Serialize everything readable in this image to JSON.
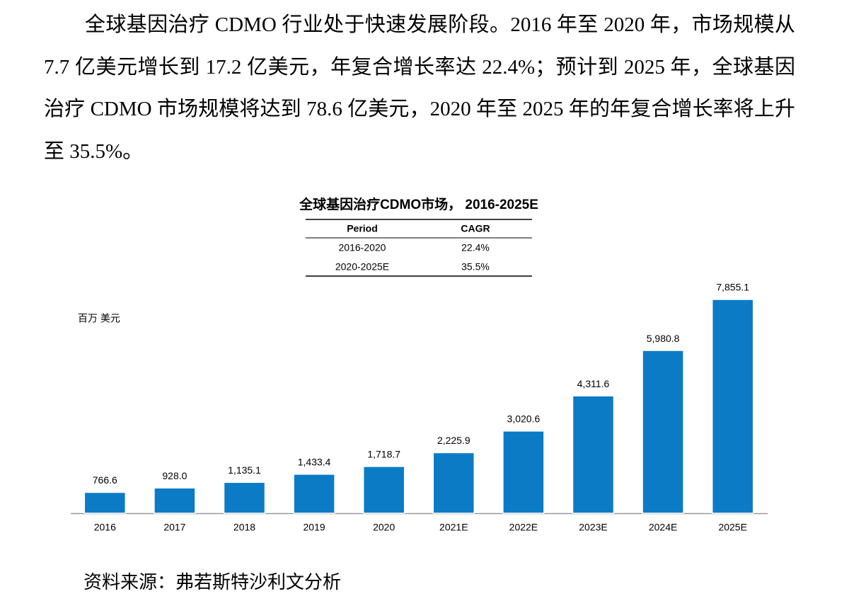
{
  "paragraph": "全球基因治疗 CDMO 行业处于快速发展阶段。2016 年至 2020 年，市场规模从 7.7 亿美元增长到 17.2 亿美元，年复合增长率达 22.4%；预计到 2025 年，全球基因治疗 CDMO 市场规模将达到 78.6 亿美元，2020 年至 2025 年的年复合增长率将上升至 35.5%。",
  "chart_data": {
    "type": "bar",
    "title": "全球基因治疗CDMO市场， 2016-2025E",
    "table": {
      "header": [
        "Period",
        "CAGR"
      ],
      "rows": [
        [
          "2016-2020",
          "22.4%"
        ],
        [
          "2020-2025E",
          "35.5%"
        ]
      ]
    },
    "y_label": "百万 美元",
    "categories": [
      "2016",
      "2017",
      "2018",
      "2019",
      "2020",
      "2021E",
      "2022E",
      "2023E",
      "2024E",
      "2025E"
    ],
    "values": [
      766.6,
      928.0,
      1135.1,
      1433.4,
      1718.7,
      2225.9,
      3020.6,
      4311.6,
      5980.8,
      7855.1
    ],
    "value_labels": [
      "766.6",
      "928.0",
      "1,135.1",
      "1,433.4",
      "1,718.7",
      "2,225.9",
      "3,020.6",
      "4,311.6",
      "5,980.8",
      "7,855.1"
    ],
    "color": "#0b7bc6"
  },
  "source": "资料来源：弗若斯特沙利文分析"
}
